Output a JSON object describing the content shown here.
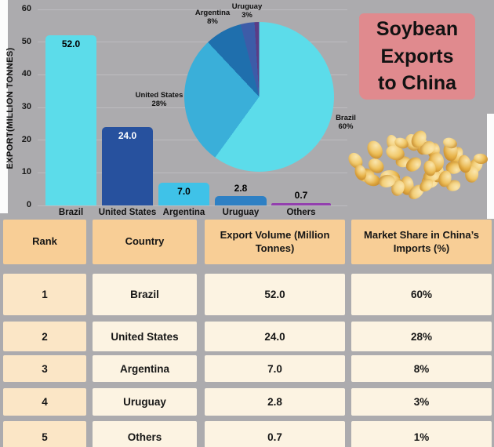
{
  "page": {
    "background": "#ACABAE"
  },
  "title_card": {
    "text": "Soybean Exports to China",
    "lines": [
      "Soybean",
      "Exports",
      "to China"
    ],
    "background": "#E08A8E"
  },
  "chart_data": [
    {
      "type": "bar",
      "title": "",
      "xlabel": "",
      "ylabel": "EXPORT(MILLION TONNES)",
      "ylim": [
        0,
        60
      ],
      "yticks": [
        0,
        10,
        20,
        30,
        40,
        50,
        60
      ],
      "grid": true,
      "categories": [
        "Brazil",
        "United States",
        "Argentina",
        "Uruguay",
        "Others"
      ],
      "values": [
        52.0,
        24.0,
        7.0,
        2.8,
        0.7
      ],
      "value_labels": [
        "52.0",
        "24.0",
        "7.0",
        "2.8",
        "0.7"
      ],
      "bar_colors": [
        "#5CDCEA",
        "#27519E",
        "#3FC2E8",
        "#2E80C4",
        "#9340AE"
      ],
      "value_label_colors": [
        "#000000",
        "#ffffff",
        "#000000",
        "#000000",
        "#000000"
      ]
    },
    {
      "type": "pie",
      "labels": [
        "Brazil",
        "United States",
        "Argentina",
        "Uruguay",
        "Others"
      ],
      "values": [
        60,
        28,
        8,
        3,
        1
      ],
      "percent_labels": [
        "60%",
        "28%",
        "8%",
        "3%",
        ""
      ],
      "colors": [
        "#5CDCEA",
        "#3AAFD9",
        "#1F6FAD",
        "#3D5CA8",
        "#5B3C86"
      ],
      "legend_position": "around-slices"
    }
  ],
  "table": {
    "headers": [
      "Rank",
      "Country",
      "Export Volume (Million Tonnes)",
      "Market Share in China’s Imports (%)"
    ],
    "rows": [
      [
        "1",
        "Brazil",
        "52.0",
        "60%"
      ],
      [
        "2",
        "United States",
        "24.0",
        "28%"
      ],
      [
        "3",
        "Argentina",
        "7.0",
        "8%"
      ],
      [
        "4",
        "Uruguay",
        "2.8",
        "3%"
      ],
      [
        "5",
        "Others",
        "0.7",
        "1%"
      ]
    ],
    "header_bg": "#F8CE96",
    "rank_col_bg": "#FBE6C6",
    "cell_bg": "#FCF3E2"
  }
}
